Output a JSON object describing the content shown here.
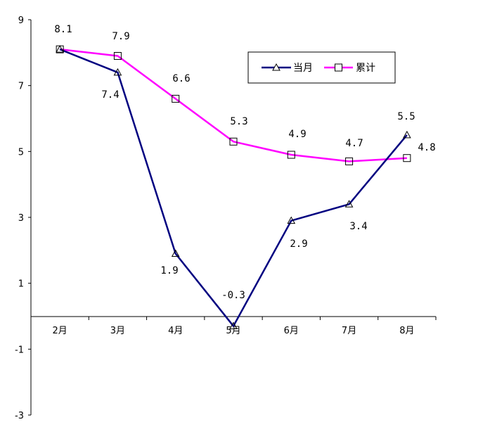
{
  "chart_data": {
    "type": "line",
    "categories": [
      "2月",
      "3月",
      "4月",
      "5月",
      "6月",
      "7月",
      "8月"
    ],
    "series": [
      {
        "name": "当月",
        "values": [
          8.1,
          7.4,
          1.9,
          -0.3,
          2.9,
          3.4,
          5.5
        ],
        "labels": [
          "8.1",
          "7.4",
          "1.9",
          "-0.3",
          "2.9",
          "3.4",
          "5.5"
        ],
        "color": "#000080",
        "marker": "triangle"
      },
      {
        "name": "累计",
        "values": [
          8.1,
          7.9,
          6.6,
          5.3,
          4.9,
          4.7,
          4.8
        ],
        "labels": [
          "",
          "7.9",
          "6.6",
          "5.3",
          "4.9",
          "4.7",
          "4.8"
        ],
        "color": "#ff00ff",
        "marker": "square"
      }
    ],
    "ylim": [
      -3,
      9
    ],
    "yticks": [
      "-3",
      "-1",
      "1",
      "3",
      "5",
      "7",
      "9"
    ],
    "title": "",
    "xlabel": "",
    "ylabel": "",
    "grid": false,
    "legend_position": "top-right"
  }
}
